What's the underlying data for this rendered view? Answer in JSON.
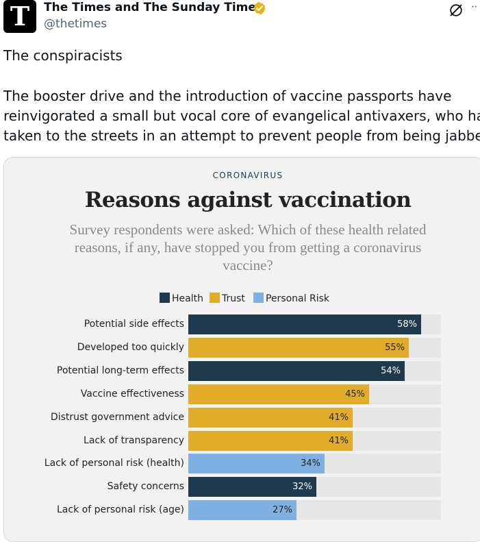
{
  "account": {
    "avatar_letter": "T",
    "display_name": "The Times and The Sunday Times",
    "handle": "@thetimes",
    "verified_badge_color": "#e2b719"
  },
  "actions": {
    "grok_icon": "grok-icon",
    "more_label": "··"
  },
  "tweet": {
    "title": "The conspiracists",
    "body_lines": [
      "The booster drive and the introduction of vaccine passports have",
      "reinvigorated a small but vocal core of evangelical antivaxers, who have",
      "taken to the streets in an attempt to prevent people from being jabbed"
    ]
  },
  "chart_data": {
    "type": "bar",
    "orientation": "horizontal",
    "kicker": "CORONAVIRUS",
    "title": "Reasons against vaccination",
    "subtitle": "Survey respondents were asked: Which of these health related reasons, if any, have stopped you from getting a coronavirus vaccine?",
    "legend": [
      {
        "name": "Health",
        "color": "#1f3a4d"
      },
      {
        "name": "Trust",
        "color": "#e3ac28"
      },
      {
        "name": "Personal Risk",
        "color": "#7eb0e2"
      }
    ],
    "xlim": [
      0,
      100
    ],
    "categories": [
      "Potential side effects",
      "Developed too quickly",
      "Potential long-term effects",
      "Vaccine effectiveness",
      "Distrust government advice",
      "Lack of transparency",
      "Lack of personal risk (health)",
      "Safety concerns",
      "Lack of personal risk (age)"
    ],
    "values": [
      58,
      55,
      54,
      45,
      41,
      41,
      34,
      32,
      27
    ],
    "value_labels": [
      "58%",
      "55%",
      "54%",
      "45%",
      "41%",
      "41%",
      "34%",
      "32%",
      "27%"
    ],
    "groups": [
      "Health",
      "Trust",
      "Health",
      "Trust",
      "Trust",
      "Trust",
      "Personal Risk",
      "Health",
      "Personal Risk"
    ]
  }
}
